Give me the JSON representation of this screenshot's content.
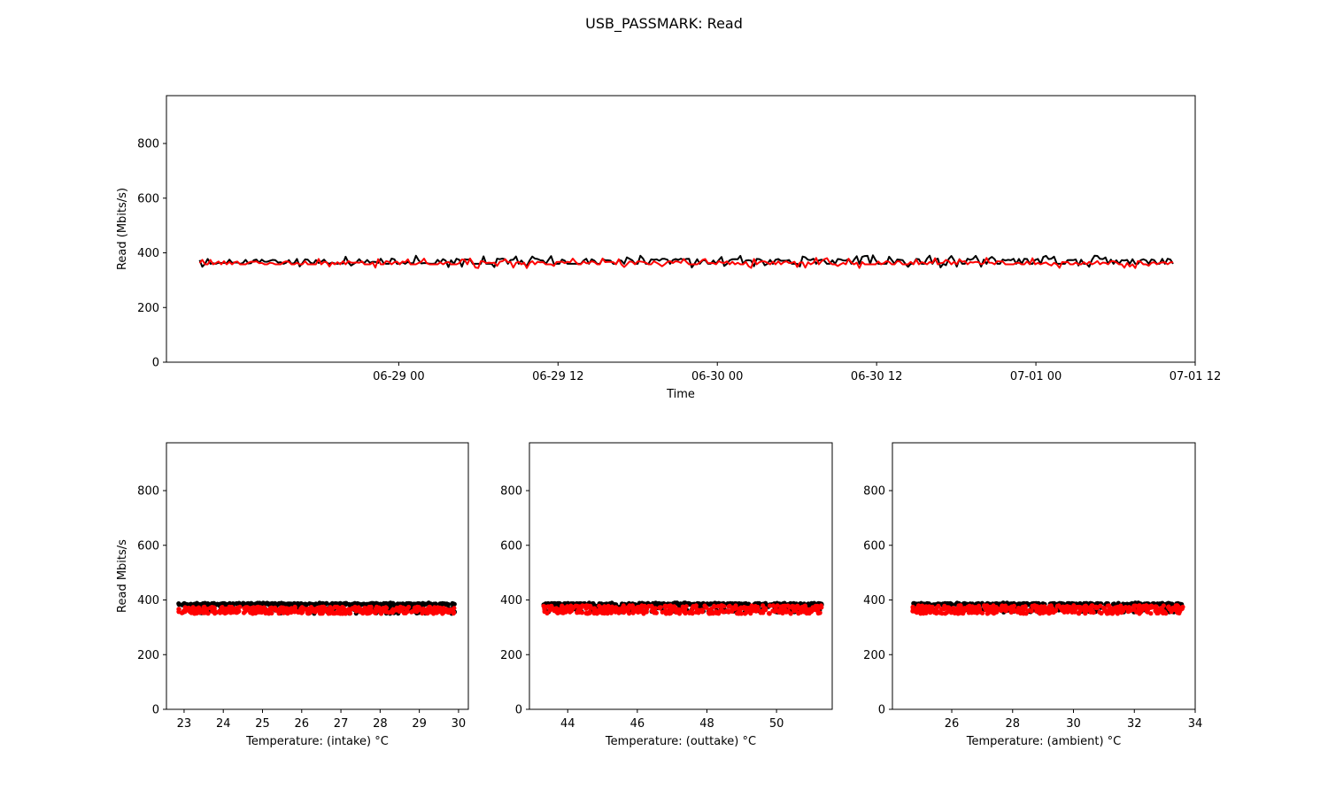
{
  "figure": {
    "title": "USB_PASSMARK: Read"
  },
  "colors": {
    "series_a": "#000000",
    "series_b": "#ff0000"
  },
  "chart_data": [
    {
      "type": "line",
      "xlabel": "Time",
      "ylabel": "Read (Mbits/s)",
      "x_axis": "datetime",
      "xlim": [
        "2019-06-28 06:30",
        "2019-07-01 12:00"
      ],
      "ylim": [
        0,
        975
      ],
      "x_ticks": [
        "06-29 00",
        "06-29 12",
        "06-30 00",
        "06-30 12",
        "07-01 00",
        "07-01 12"
      ],
      "y_ticks": [
        0,
        200,
        400,
        600,
        800
      ],
      "x_start": "2019-06-28 09:00",
      "x_end": "2019-07-01 10:20",
      "series": [
        {
          "color": "#000000",
          "baseline": 360,
          "high": 375,
          "samples": 360
        },
        {
          "color": "#ff0000",
          "baseline": 358,
          "high": 366,
          "samples": 360
        }
      ]
    },
    {
      "type": "scatter",
      "xlabel": "Temperature: (intake) °C",
      "ylabel": "Read Mbits/s",
      "xlim": [
        22.55,
        30.25
      ],
      "ylim": [
        0,
        975
      ],
      "x_ticks": [
        23,
        24,
        25,
        26,
        27,
        28,
        29,
        30
      ],
      "y_ticks": [
        0,
        200,
        400,
        600,
        800
      ],
      "x_range": [
        22.85,
        29.9
      ],
      "series": [
        {
          "color": "#000000",
          "y_range": [
            350,
            390
          ],
          "points": 420
        },
        {
          "color": "#ff0000",
          "y_range": [
            350,
            375
          ],
          "points": 420
        }
      ]
    },
    {
      "type": "scatter",
      "xlabel": "Temperature: (outtake) °C",
      "ylabel": "",
      "xlim": [
        42.9,
        51.6
      ],
      "ylim": [
        0,
        975
      ],
      "x_ticks": [
        44,
        46,
        48,
        50
      ],
      "y_ticks": [
        0,
        200,
        400,
        600,
        800
      ],
      "x_range": [
        43.3,
        51.3
      ],
      "series": [
        {
          "color": "#000000",
          "y_range": [
            355,
            390
          ],
          "points": 420
        },
        {
          "color": "#ff0000",
          "y_range": [
            350,
            380
          ],
          "points": 420
        }
      ]
    },
    {
      "type": "scatter",
      "xlabel": "Temperature: (ambient) °C",
      "ylabel": "",
      "xlim": [
        24.05,
        34.0
      ],
      "ylim": [
        0,
        975
      ],
      "x_ticks": [
        26,
        28,
        30,
        32,
        34
      ],
      "y_ticks": [
        0,
        200,
        400,
        600,
        800
      ],
      "x_range": [
        24.7,
        33.6
      ],
      "series": [
        {
          "color": "#000000",
          "y_range": [
            355,
            390
          ],
          "points": 420
        },
        {
          "color": "#ff0000",
          "y_range": [
            350,
            380
          ],
          "points": 420
        }
      ]
    }
  ]
}
